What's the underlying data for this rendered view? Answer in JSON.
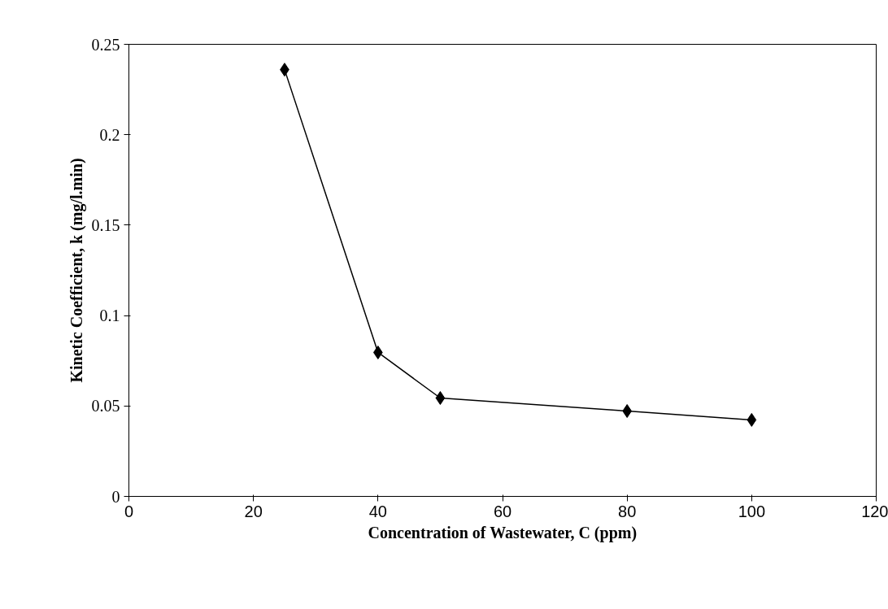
{
  "chart_data": {
    "type": "line",
    "xlabel": "Concentration of Wastewater, C (ppm)",
    "ylabel": "Kinetic Coefficient, k (mg/l.min)",
    "x": [
      25,
      40,
      50,
      80,
      100
    ],
    "series": [
      {
        "color": "#000000",
        "values": [
          0.236,
          0.0796,
          0.0544,
          0.0472,
          0.0423
        ]
      }
    ],
    "xlim": [
      0,
      120
    ],
    "xticks": [
      0,
      20,
      40,
      60,
      80,
      100,
      120
    ],
    "ylim": [
      0,
      0.25
    ],
    "yticks": [
      0,
      0.05,
      0.1,
      0.15,
      0.2,
      0.25
    ],
    "marker": "diamond",
    "line_style": "solid"
  }
}
